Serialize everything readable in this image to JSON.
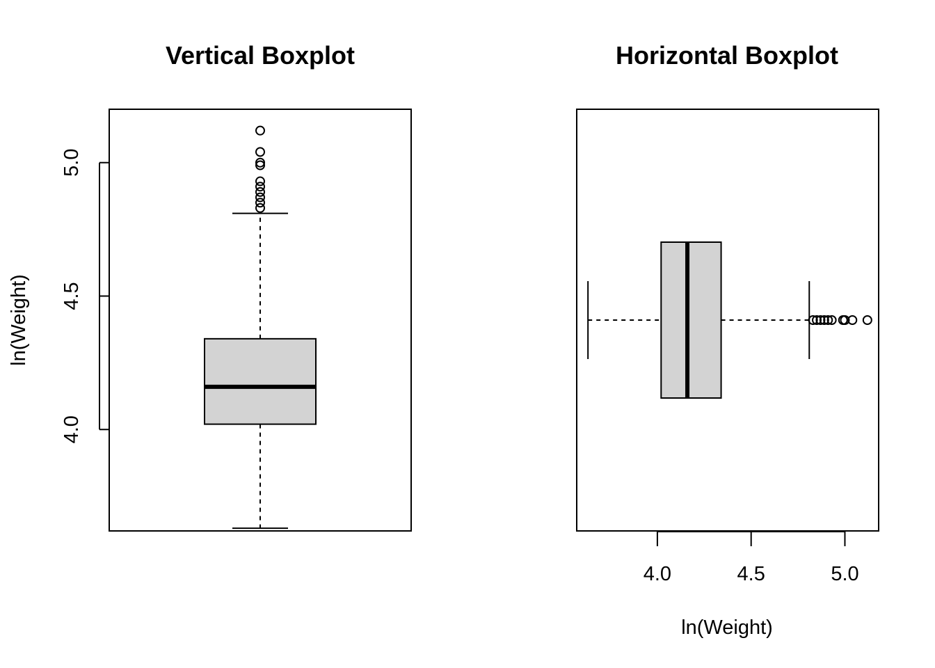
{
  "chart_data": [
    {
      "type": "boxplot",
      "orientation": "vertical",
      "title": "Vertical Boxplot",
      "ylabel": "ln(Weight)",
      "xlabel": "",
      "ylim": [
        3.62,
        5.2
      ],
      "ticks": [
        {
          "value": 4.0,
          "label": "4.0"
        },
        {
          "value": 4.5,
          "label": "4.5"
        },
        {
          "value": 5.0,
          "label": "5.0"
        }
      ],
      "stats": {
        "whisker_low": 3.63,
        "q1": 4.02,
        "median": 4.16,
        "q3": 4.34,
        "whisker_high": 4.81
      },
      "outliers": [
        4.83,
        4.85,
        4.87,
        4.89,
        4.91,
        4.93,
        4.99,
        5.0,
        5.04,
        5.12
      ],
      "box_fill": "#d3d3d3"
    },
    {
      "type": "boxplot",
      "orientation": "horizontal",
      "title": "Horizontal Boxplot",
      "xlabel": "ln(Weight)",
      "ylabel": "",
      "xlim": [
        3.57,
        5.18
      ],
      "ticks": [
        {
          "value": 4.0,
          "label": "4.0"
        },
        {
          "value": 4.5,
          "label": "4.5"
        },
        {
          "value": 5.0,
          "label": "5.0"
        }
      ],
      "stats": {
        "whisker_low": 3.63,
        "q1": 4.02,
        "median": 4.16,
        "q3": 4.34,
        "whisker_high": 4.81
      },
      "outliers": [
        4.83,
        4.85,
        4.87,
        4.89,
        4.91,
        4.93,
        4.99,
        5.0,
        5.04,
        5.12
      ],
      "box_fill": "#d3d3d3"
    }
  ]
}
